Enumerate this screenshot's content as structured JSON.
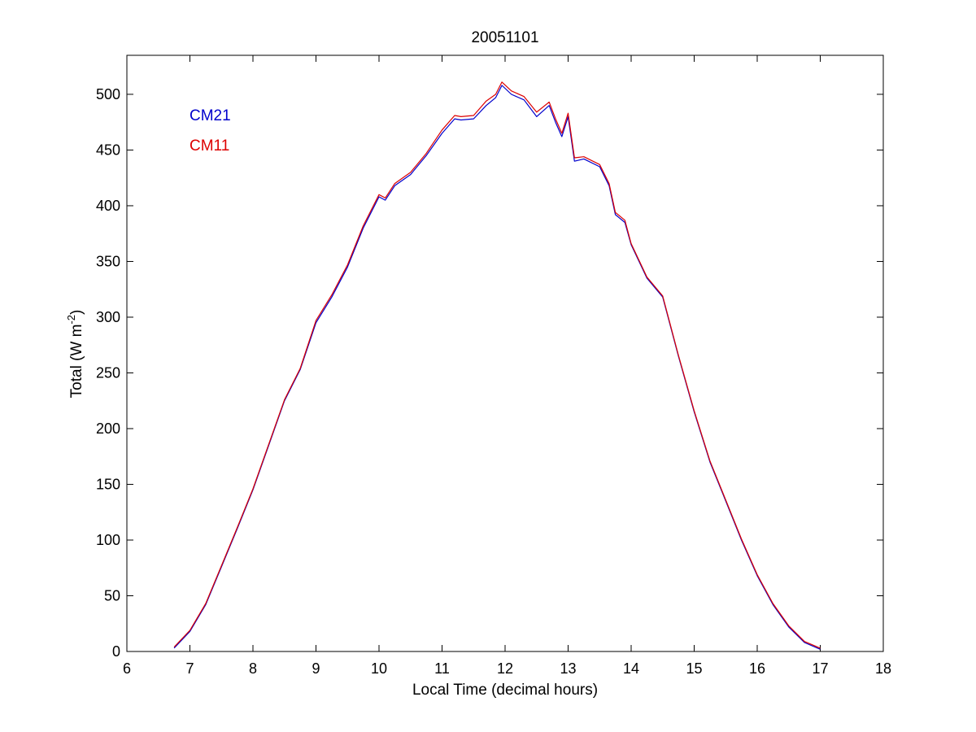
{
  "chart_data": {
    "type": "line",
    "title": "20051101",
    "xlabel": "Local Time (decimal hours)",
    "ylabel_main": "Total (W m",
    "ylabel_sup": "-2",
    "ylabel_close": ")",
    "xlim": [
      6,
      18
    ],
    "ylim": [
      0,
      535
    ],
    "xticks": [
      6,
      7,
      8,
      9,
      10,
      11,
      12,
      13,
      14,
      15,
      16,
      17,
      18
    ],
    "yticks": [
      0,
      50,
      100,
      150,
      200,
      250,
      300,
      350,
      400,
      450,
      500
    ],
    "grid": false,
    "legend": "top-left",
    "series": [
      {
        "name": "CM21",
        "color": "#0000cc",
        "x": [
          6.75,
          7.0,
          7.25,
          7.5,
          7.75,
          8.0,
          8.25,
          8.5,
          8.75,
          9.0,
          9.25,
          9.5,
          9.75,
          10.0,
          10.1,
          10.25,
          10.5,
          10.75,
          11.0,
          11.2,
          11.3,
          11.5,
          11.7,
          11.85,
          11.95,
          12.1,
          12.3,
          12.5,
          12.7,
          12.8,
          12.9,
          13.0,
          13.1,
          13.25,
          13.5,
          13.65,
          13.75,
          13.9,
          14.0,
          14.25,
          14.5,
          14.75,
          15.0,
          15.25,
          15.5,
          15.75,
          16.0,
          16.25,
          16.5,
          16.75,
          17.0
        ],
        "values": [
          3,
          18,
          42,
          76,
          110,
          145,
          185,
          225,
          253,
          295,
          318,
          345,
          380,
          408,
          405,
          418,
          428,
          445,
          465,
          478,
          477,
          478,
          490,
          497,
          508,
          500,
          495,
          480,
          490,
          475,
          462,
          480,
          440,
          442,
          435,
          418,
          392,
          385,
          365,
          335,
          318,
          265,
          215,
          170,
          135,
          100,
          68,
          42,
          22,
          8,
          2
        ]
      },
      {
        "name": "CM11",
        "color": "#dd0000",
        "x": [
          6.75,
          7.0,
          7.25,
          7.5,
          7.75,
          8.0,
          8.25,
          8.5,
          8.75,
          9.0,
          9.25,
          9.5,
          9.75,
          10.0,
          10.1,
          10.25,
          10.5,
          10.75,
          11.0,
          11.2,
          11.3,
          11.5,
          11.7,
          11.85,
          11.95,
          12.1,
          12.3,
          12.5,
          12.7,
          12.8,
          12.9,
          13.0,
          13.1,
          13.25,
          13.5,
          13.65,
          13.75,
          13.9,
          14.0,
          14.25,
          14.5,
          14.75,
          15.0,
          15.25,
          15.5,
          15.75,
          16.0,
          16.25,
          16.5,
          16.75,
          17.0
        ],
        "values": [
          4,
          19,
          43,
          77,
          111,
          146,
          186,
          226,
          254,
          297,
          320,
          347,
          382,
          410,
          407,
          420,
          430,
          447,
          468,
          481,
          480,
          481,
          494,
          500,
          511,
          503,
          498,
          484,
          493,
          478,
          465,
          483,
          443,
          444,
          437,
          420,
          394,
          387,
          366,
          336,
          319,
          266,
          216,
          171,
          136,
          101,
          69,
          43,
          23,
          9,
          3
        ]
      }
    ]
  }
}
